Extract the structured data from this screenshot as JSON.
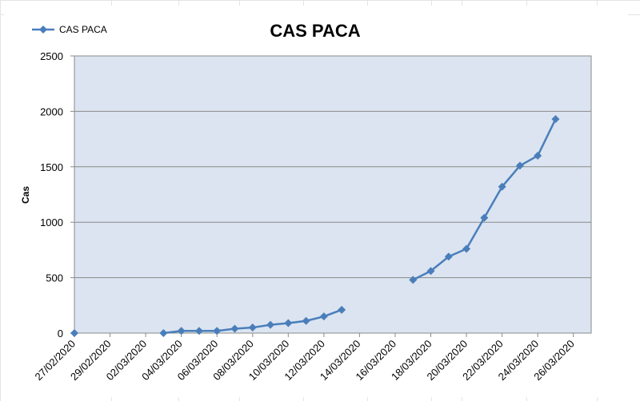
{
  "chart_data": {
    "type": "line",
    "title": "CAS PACA",
    "xlabel": "",
    "ylabel": "Cas",
    "ylim": [
      0,
      2500
    ],
    "yticks": [
      0,
      500,
      1000,
      1500,
      2000,
      2500
    ],
    "xlim": [
      "27/02/2020",
      "27/03/2020"
    ],
    "xtick_labels": [
      "27/02/2020",
      "29/02/2020",
      "02/03/2020",
      "04/03/2020",
      "06/03/2020",
      "08/03/2020",
      "10/03/2020",
      "12/03/2020",
      "14/03/2020",
      "16/03/2020",
      "18/03/2020",
      "20/03/2020",
      "22/03/2020",
      "24/03/2020",
      "26/03/2020"
    ],
    "grid": "horizontal",
    "legend": "top-left",
    "plot_background": "#dbe4f0",
    "line_color": "#4a7ebb",
    "series": [
      {
        "name": "CAS PACA",
        "marker": "diamond",
        "points": [
          {
            "x": "27/02/2020",
            "y": 0
          },
          {
            "x": "03/03/2020",
            "y": 0
          },
          {
            "x": "04/03/2020",
            "y": 20
          },
          {
            "x": "05/03/2020",
            "y": 20
          },
          {
            "x": "06/03/2020",
            "y": 20
          },
          {
            "x": "07/03/2020",
            "y": 40
          },
          {
            "x": "08/03/2020",
            "y": 50
          },
          {
            "x": "09/03/2020",
            "y": 75
          },
          {
            "x": "10/03/2020",
            "y": 90
          },
          {
            "x": "11/03/2020",
            "y": 110
          },
          {
            "x": "12/03/2020",
            "y": 150
          },
          {
            "x": "13/03/2020",
            "y": 210
          },
          {
            "x": "17/03/2020",
            "y": 480
          },
          {
            "x": "18/03/2020",
            "y": 560
          },
          {
            "x": "19/03/2020",
            "y": 690
          },
          {
            "x": "20/03/2020",
            "y": 760
          },
          {
            "x": "21/03/2020",
            "y": 1040
          },
          {
            "x": "22/03/2020",
            "y": 1320
          },
          {
            "x": "23/03/2020",
            "y": 1510
          },
          {
            "x": "24/03/2020",
            "y": 1600
          },
          {
            "x": "25/03/2020",
            "y": 1930
          }
        ]
      }
    ]
  }
}
